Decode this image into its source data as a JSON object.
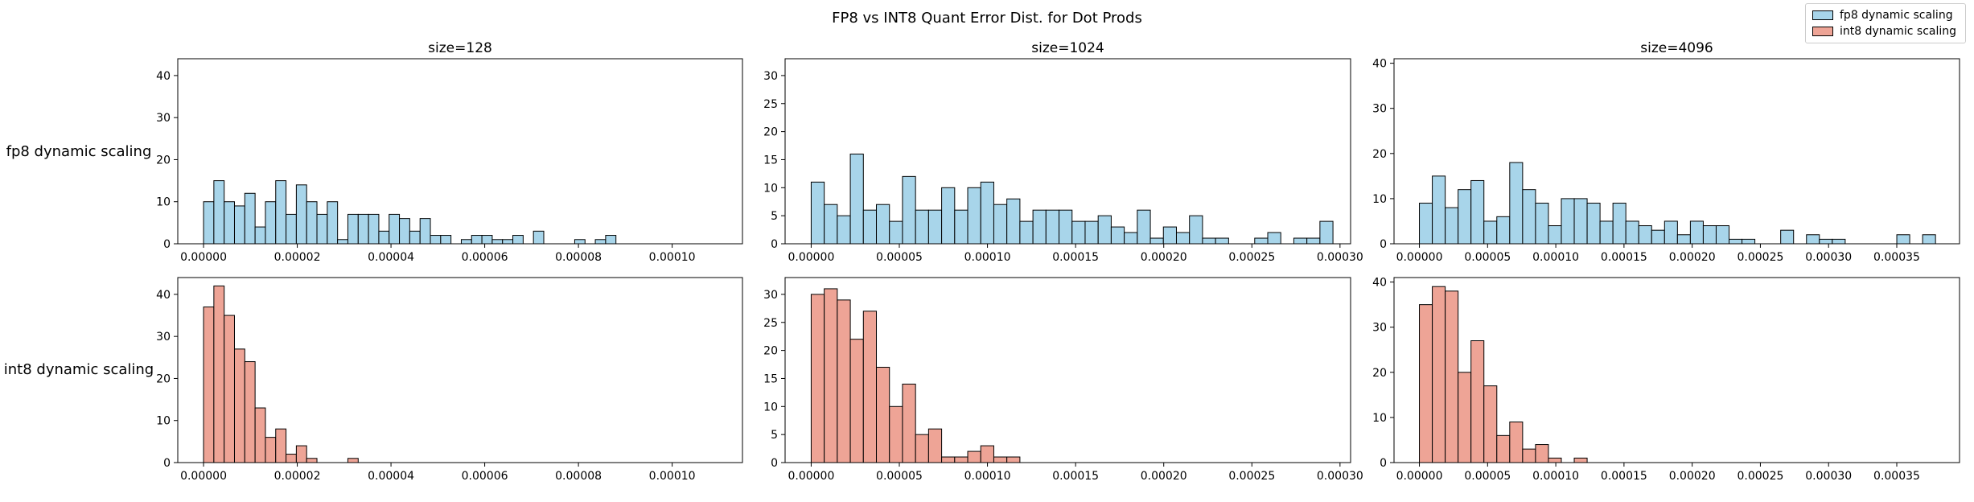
{
  "suptitle": "FP8 vs INT8 Quant Error Dist. for Dot Prods",
  "row_labels": [
    "fp8 dynamic scaling",
    "int8 dynamic scaling"
  ],
  "legend": [
    {
      "label": "fp8 dynamic scaling",
      "color": "#a8d5ea"
    },
    {
      "label": "int8 dynamic scaling",
      "color": "#eea496"
    }
  ],
  "colors": {
    "fp8": "#a8d5ea",
    "int8": "#eea496",
    "edge": "#000000"
  },
  "chart_data": [
    {
      "type": "bar",
      "title": "size=128",
      "x_ticks": [
        "0.00000",
        "0.00002",
        "0.00004",
        "0.00006",
        "0.00008",
        "0.00010"
      ],
      "x_tick_values": [
        0,
        2e-05,
        4e-05,
        6e-05,
        8e-05,
        0.0001
      ],
      "xlim": [
        -5.5e-06,
        0.000115
      ],
      "bin_start": 0,
      "bin_width": 2.2e-06,
      "series": [
        {
          "name": "fp8 dynamic scaling",
          "ylim": [
            0,
            44
          ],
          "y_ticks": [
            0,
            10,
            20,
            30,
            40
          ],
          "counts": [
            10,
            15,
            10,
            9,
            12,
            4,
            10,
            15,
            7,
            14,
            10,
            7,
            10,
            1,
            7,
            7,
            7,
            3,
            7,
            6,
            3,
            6,
            2,
            2,
            0,
            1,
            2,
            2,
            1,
            1,
            2,
            0,
            3,
            0,
            0,
            0,
            1,
            0,
            1,
            2
          ]
        },
        {
          "name": "int8 dynamic scaling",
          "ylim": [
            0,
            44
          ],
          "y_ticks": [
            0,
            10,
            20,
            30,
            40
          ],
          "counts": [
            37,
            42,
            35,
            27,
            24,
            13,
            6,
            8,
            2,
            4,
            1,
            0,
            0,
            0,
            1
          ]
        }
      ]
    },
    {
      "type": "bar",
      "title": "size=1024",
      "x_ticks": [
        "0.00000",
        "0.00005",
        "0.00010",
        "0.00015",
        "0.00020",
        "0.00025",
        "0.00030"
      ],
      "x_tick_values": [
        0,
        5e-05,
        0.0001,
        0.00015,
        0.0002,
        0.00025,
        0.0003
      ],
      "xlim": [
        -1.48e-05,
        0.000306
      ],
      "bin_start": 0,
      "bin_width": 7.4e-06,
      "series": [
        {
          "name": "fp8 dynamic scaling",
          "ylim": [
            0,
            33
          ],
          "y_ticks": [
            0,
            5,
            10,
            15,
            20,
            25,
            30
          ],
          "counts": [
            11,
            7,
            5,
            16,
            6,
            7,
            4,
            12,
            6,
            6,
            10,
            6,
            10,
            11,
            7,
            8,
            4,
            6,
            6,
            6,
            4,
            4,
            5,
            3,
            2,
            6,
            1,
            3,
            2,
            5,
            1,
            1,
            0,
            0,
            1,
            2,
            0,
            1,
            1,
            4
          ]
        },
        {
          "name": "int8 dynamic scaling",
          "ylim": [
            0,
            33
          ],
          "y_ticks": [
            0,
            5,
            10,
            15,
            20,
            25,
            30
          ],
          "counts": [
            30,
            31,
            29,
            22,
            27,
            17,
            10,
            14,
            5,
            6,
            1,
            1,
            2,
            3,
            1,
            1
          ]
        }
      ]
    },
    {
      "type": "bar",
      "title": "size=4096",
      "x_ticks": [
        "0.00000",
        "0.00005",
        "0.00010",
        "0.00015",
        "0.00020",
        "0.00025",
        "0.00030",
        "0.00035"
      ],
      "x_tick_values": [
        0,
        5e-05,
        0.0001,
        0.00015,
        0.0002,
        0.00025,
        0.0003,
        0.00035
      ],
      "xlim": [
        -1.86e-05,
        0.000396
      ],
      "bin_start": 0,
      "bin_width": 9.46e-06,
      "series": [
        {
          "name": "fp8 dynamic scaling",
          "ylim": [
            0,
            41
          ],
          "y_ticks": [
            0,
            10,
            20,
            30,
            40
          ],
          "counts": [
            9,
            15,
            8,
            12,
            14,
            5,
            6,
            18,
            12,
            9,
            4,
            10,
            10,
            9,
            5,
            9,
            5,
            4,
            3,
            5,
            2,
            5,
            4,
            4,
            1,
            1,
            0,
            0,
            3,
            0,
            2,
            1,
            1,
            0,
            0,
            0,
            0,
            2,
            0,
            2
          ]
        },
        {
          "name": "int8 dynamic scaling",
          "ylim": [
            0,
            41
          ],
          "y_ticks": [
            0,
            10,
            20,
            30,
            40
          ],
          "counts": [
            35,
            39,
            38,
            20,
            27,
            17,
            6,
            9,
            3,
            4,
            1,
            0,
            1
          ]
        }
      ]
    }
  ]
}
